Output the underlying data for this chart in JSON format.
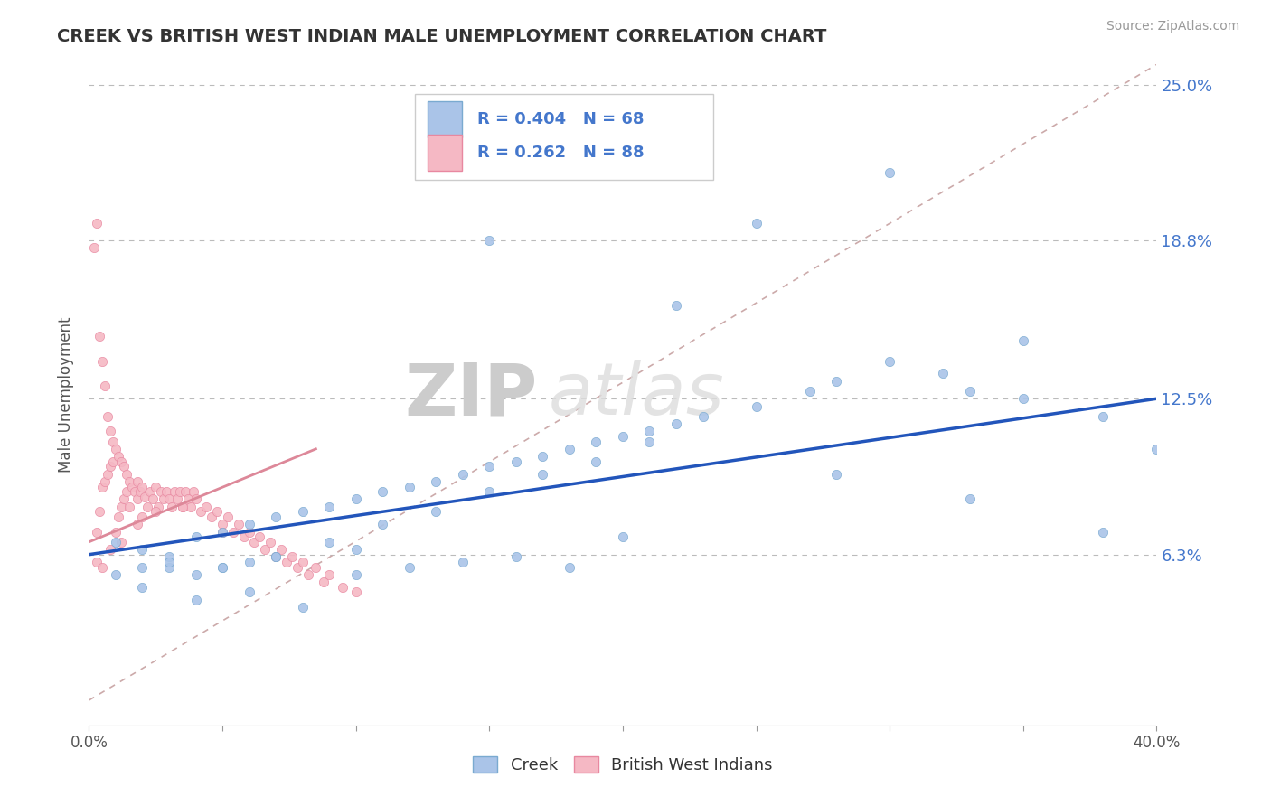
{
  "title": "CREEK VS BRITISH WEST INDIAN MALE UNEMPLOYMENT CORRELATION CHART",
  "source_text": "Source: ZipAtlas.com",
  "ylabel": "Male Unemployment",
  "watermark_zip": "ZIP",
  "watermark_atlas": "atlas",
  "xmin": 0.0,
  "xmax": 0.4,
  "ymin": -0.005,
  "ymax": 0.258,
  "yticks": [
    0.063,
    0.125,
    0.188,
    0.25
  ],
  "ytick_labels": [
    "6.3%",
    "12.5%",
    "18.8%",
    "25.0%"
  ],
  "xtick_positions": [
    0.0,
    0.05,
    0.1,
    0.15,
    0.2,
    0.25,
    0.3,
    0.35,
    0.4
  ],
  "xtick_labels_shown": [
    "0.0%",
    "",
    "",
    "",
    "",
    "",
    "",
    "",
    "40.0%"
  ],
  "grid_color": "#bbbbbb",
  "background_color": "#ffffff",
  "creek_color": "#aac4e8",
  "creek_edge_color": "#7aaad0",
  "bwi_color": "#f5b8c4",
  "bwi_edge_color": "#e888a0",
  "legend_color": "#4477cc",
  "creek_line_color": "#2255bb",
  "bwi_line_color": "#dd8899",
  "ref_line_color": "#ccaaaa",
  "creek_line_x": [
    0.0,
    0.4
  ],
  "creek_line_y": [
    0.063,
    0.125
  ],
  "bwi_line_x": [
    0.0,
    0.085
  ],
  "bwi_line_y": [
    0.068,
    0.105
  ],
  "ref_line_x": [
    0.0,
    0.4
  ],
  "ref_line_y": [
    0.005,
    0.258
  ]
}
